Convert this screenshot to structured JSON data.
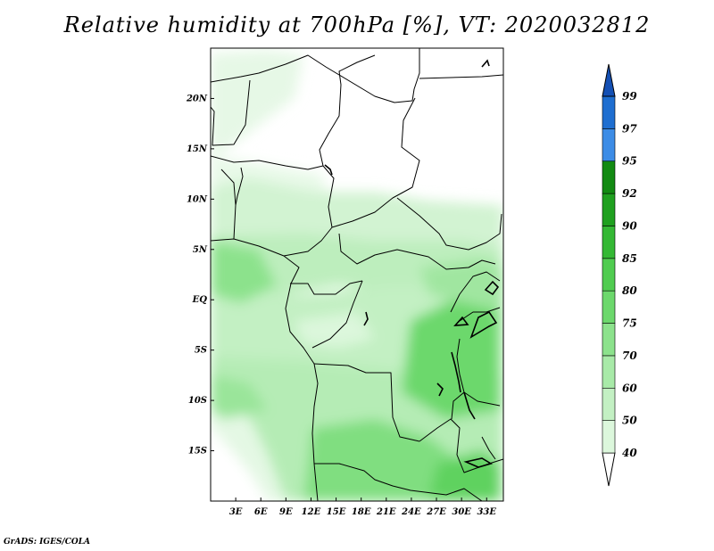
{
  "title": "Relative humidity at 700hPa [%], VT: 2020032812",
  "footer": "GrADS: IGES/COLA",
  "map": {
    "lat_range": [
      -20,
      25
    ],
    "lon_range": [
      0,
      35
    ],
    "lat_ticks": [
      {
        "value": 20,
        "label": "20N"
      },
      {
        "value": 15,
        "label": "15N"
      },
      {
        "value": 10,
        "label": "10N"
      },
      {
        "value": 5,
        "label": "5N"
      },
      {
        "value": 0,
        "label": "EQ"
      },
      {
        "value": -5,
        "label": "5S"
      },
      {
        "value": -10,
        "label": "10S"
      },
      {
        "value": -15,
        "label": "15S"
      }
    ],
    "lon_ticks": [
      {
        "value": 3,
        "label": "3E"
      },
      {
        "value": 6,
        "label": "6E"
      },
      {
        "value": 9,
        "label": "9E"
      },
      {
        "value": 12,
        "label": "12E"
      },
      {
        "value": 15,
        "label": "15E"
      },
      {
        "value": 18,
        "label": "18E"
      },
      {
        "value": 21,
        "label": "21E"
      },
      {
        "value": 24,
        "label": "24E"
      },
      {
        "value": 27,
        "label": "27E"
      },
      {
        "value": 30,
        "label": "30E"
      },
      {
        "value": 33,
        "label": "33E"
      }
    ]
  },
  "colorbar": {
    "levels": [
      "40",
      "50",
      "60",
      "70",
      "75",
      "80",
      "85",
      "90",
      "92",
      "95",
      "97",
      "99"
    ],
    "colors": [
      "#f0fcf0",
      "#dcf7dc",
      "#c3f0c3",
      "#a8eaa8",
      "#8ce28c",
      "#6cd86c",
      "#50cc50",
      "#34b834",
      "#1fa01f",
      "#128a12",
      "#3c8ce6",
      "#1e6ed0",
      "#1450b4"
    ]
  }
}
